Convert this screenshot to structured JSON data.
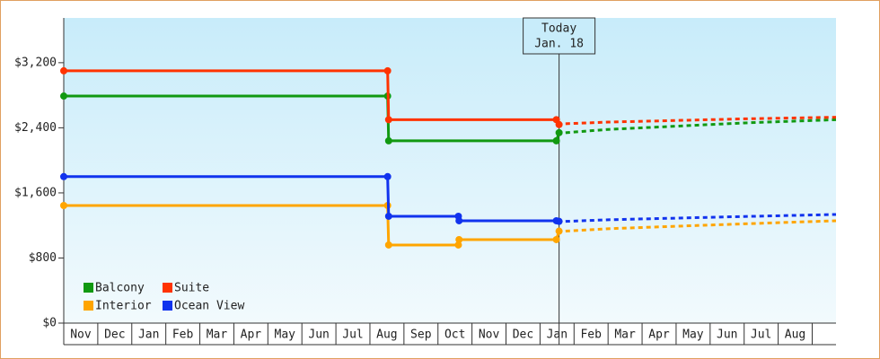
{
  "chart_data": {
    "type": "line",
    "today_label": "Today",
    "today_date": "Jan. 18",
    "today_x": 14.56,
    "categories": [
      "Nov",
      "Dec",
      "Jan",
      "Feb",
      "Mar",
      "Apr",
      "May",
      "Jun",
      "Jul",
      "Aug",
      "Sep",
      "Oct",
      "Nov",
      "Dec",
      "Jan",
      "Feb",
      "Mar",
      "Apr",
      "May",
      "Jun",
      "Jul",
      "Aug"
    ],
    "xlim": [
      0,
      22.7
    ],
    "ylim": [
      0,
      3750
    ],
    "yticks": [
      {
        "value": 0,
        "label": "$0"
      },
      {
        "value": 800,
        "label": "$800"
      },
      {
        "value": 1600,
        "label": "$1,600"
      },
      {
        "value": 2400,
        "label": "$2,400"
      },
      {
        "value": 3200,
        "label": "$3,200"
      }
    ],
    "series": [
      {
        "name": "Balcony",
        "color": "#119911",
        "x": [
          0,
          9.52,
          9.55,
          14.48,
          14.56
        ],
        "values": [
          2790,
          2790,
          2240,
          2240,
          2340
        ],
        "forecast_x": [
          14.75,
          16,
          18,
          20,
          22.7
        ],
        "forecast_values": [
          2340,
          2380,
          2420,
          2460,
          2500
        ]
      },
      {
        "name": "Suite",
        "color": "#ff3300",
        "x": [
          0,
          9.52,
          9.55,
          14.48,
          14.56
        ],
        "values": [
          3100,
          3100,
          2500,
          2500,
          2440
        ],
        "forecast_x": [
          14.75,
          16,
          18,
          20,
          22.7
        ],
        "forecast_values": [
          2450,
          2470,
          2490,
          2510,
          2530
        ]
      },
      {
        "name": "Interior",
        "color": "#ffa500",
        "x": [
          0,
          9.52,
          9.55,
          11.6,
          11.62,
          14.48,
          14.56
        ],
        "values": [
          1445,
          1445,
          960,
          960,
          1026,
          1026,
          1130
        ],
        "forecast_x": [
          14.75,
          16,
          18,
          20,
          22.7
        ],
        "forecast_values": [
          1130,
          1160,
          1190,
          1220,
          1258
        ]
      },
      {
        "name": "Ocean View",
        "color": "#1133ee",
        "x": [
          0,
          9.52,
          9.55,
          11.6,
          11.62,
          14.48,
          14.56
        ],
        "values": [
          1800,
          1800,
          1313,
          1313,
          1258,
          1258,
          1250
        ],
        "forecast_x": [
          14.75,
          16,
          18,
          20,
          22.7
        ],
        "forecast_values": [
          1250,
          1270,
          1290,
          1310,
          1335
        ]
      }
    ]
  }
}
